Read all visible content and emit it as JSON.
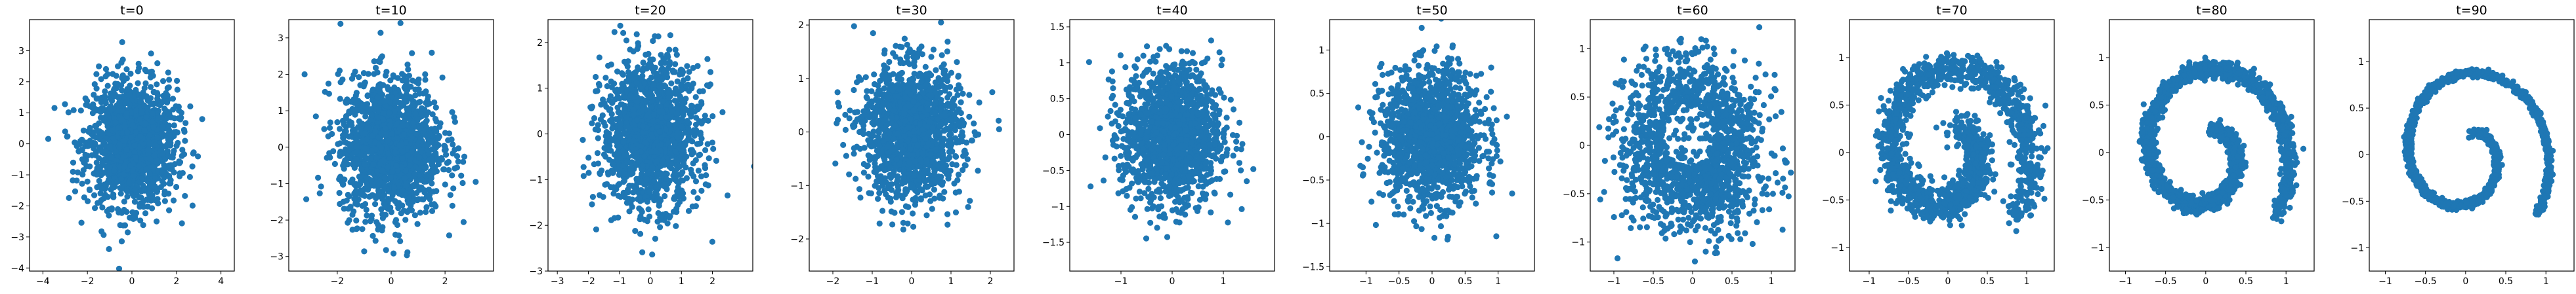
{
  "figure": {
    "description_hidden": "",
    "point_color": "#1f77b4"
  },
  "chart_data": [
    {
      "type": "scatter",
      "title": "t=0",
      "distribution": "gaussian",
      "std": 1.0,
      "xlim": [
        -4.6,
        4.6
      ],
      "ylim": [
        -4.1,
        4.0
      ],
      "xticks": [
        -4,
        -2,
        0,
        2,
        4
      ],
      "yticks": [
        -4,
        -3,
        -2,
        -1,
        0,
        1,
        2,
        3
      ],
      "points": []
    },
    {
      "type": "scatter",
      "title": "t=10",
      "distribution": "gaussian",
      "std": 0.95,
      "xlim": [
        -3.8,
        3.8
      ],
      "ylim": [
        -3.4,
        3.5
      ],
      "xticks": [
        -2,
        0,
        2
      ],
      "yticks": [
        -3,
        -2,
        -1,
        0,
        1,
        2,
        3
      ],
      "points": []
    },
    {
      "type": "scatter",
      "title": "t=20",
      "distribution": "gaussian",
      "std": 0.78,
      "xlim": [
        -3.3,
        3.3
      ],
      "ylim": [
        -3.0,
        2.5
      ],
      "xticks": [
        -3,
        -2,
        -1,
        0,
        1,
        2
      ],
      "yticks": [
        -3,
        -2,
        -1,
        0,
        1,
        2
      ],
      "points": []
    },
    {
      "type": "scatter",
      "title": "t=30",
      "distribution": "gaussian",
      "std": 0.62,
      "xlim": [
        -2.6,
        2.6
      ],
      "ylim": [
        -2.6,
        2.1
      ],
      "xticks": [
        -2,
        -1,
        0,
        1,
        2
      ],
      "yticks": [
        -2,
        -1,
        0,
        1,
        2
      ],
      "points": []
    },
    {
      "type": "scatter",
      "title": "t=40",
      "distribution": "gaussian",
      "std": 0.48,
      "xlim": [
        -2.0,
        2.0
      ],
      "ylim": [
        -1.9,
        1.6
      ],
      "xticks": [
        -1,
        0,
        1
      ],
      "yticks": [
        -1.5,
        -1.0,
        -0.5,
        0.0,
        0.5,
        1.0,
        1.5
      ],
      "points": []
    },
    {
      "type": "scatter",
      "title": "t=50",
      "distribution": "gaussian",
      "std": 0.38,
      "xlim": [
        -1.55,
        1.55
      ],
      "ylim": [
        -1.55,
        1.35
      ],
      "xticks": [
        -1.0,
        -0.5,
        0.0,
        0.5,
        1.0
      ],
      "yticks": [
        -1.5,
        -1.0,
        -0.5,
        0.0,
        0.5,
        1.0
      ],
      "points": []
    },
    {
      "type": "scatter",
      "title": "t=60",
      "distribution": "blob-with-hole",
      "xlim": [
        -1.3,
        1.3
      ],
      "ylim": [
        -1.3,
        1.3
      ],
      "xticks": [
        -1.0,
        -0.5,
        0.0,
        0.5,
        1.0
      ],
      "yticks": [
        -1.0,
        -0.5,
        0.0,
        0.5,
        1.0
      ],
      "points": []
    },
    {
      "type": "scatter",
      "title": "t=70",
      "distribution": "swiss-roll",
      "noise": 0.09,
      "xlim": [
        -1.25,
        1.35
      ],
      "ylim": [
        -1.25,
        1.4
      ],
      "xticks": [
        -1.0,
        -0.5,
        0.0,
        0.5,
        1.0
      ],
      "yticks": [
        -1.0,
        -0.5,
        0.0,
        0.5,
        1.0
      ],
      "points": []
    },
    {
      "type": "scatter",
      "title": "t=80",
      "distribution": "swiss-roll",
      "noise": 0.045,
      "xlim": [
        -1.2,
        1.35
      ],
      "ylim": [
        -1.25,
        1.4
      ],
      "xticks": [
        -1.0,
        -0.5,
        0.0,
        0.5,
        1.0
      ],
      "yticks": [
        -1.0,
        -0.5,
        0.0,
        0.5,
        1.0
      ],
      "points": []
    },
    {
      "type": "scatter",
      "title": "t=90",
      "distribution": "swiss-roll",
      "noise": 0.02,
      "xlim": [
        -1.2,
        1.35
      ],
      "ylim": [
        -1.25,
        1.45
      ],
      "xticks": [
        -1.0,
        -0.5,
        0.0,
        0.5,
        1.0
      ],
      "yticks": [
        -1.0,
        -0.5,
        0.0,
        0.5,
        1.0
      ],
      "points": []
    }
  ]
}
